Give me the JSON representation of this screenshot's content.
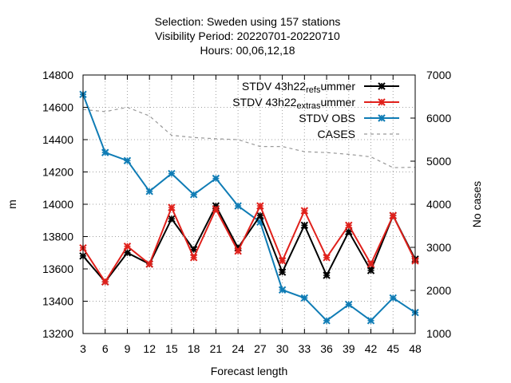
{
  "chart_data": {
    "type": "line",
    "title_lines": [
      "Selection: Sweden using   157 stations",
      "Visibility   Period: 20220701-20220710",
      "Hours: 00,06,12,18"
    ],
    "xlabel": "Forecast length",
    "ylabel": "m",
    "y2label": "No cases",
    "x": [
      3,
      6,
      9,
      12,
      15,
      18,
      21,
      24,
      27,
      30,
      33,
      36,
      39,
      42,
      45,
      48
    ],
    "xlim": [
      3,
      48
    ],
    "ylim": [
      13200,
      14800
    ],
    "yticks": [
      13200,
      13400,
      13600,
      13800,
      14000,
      14200,
      14400,
      14600,
      14800
    ],
    "y2lim": [
      1000,
      7000
    ],
    "y2ticks": [
      1000,
      2000,
      3000,
      4000,
      5000,
      6000,
      7000
    ],
    "grid": true,
    "legend_position": "top-right",
    "series": [
      {
        "name": "STDV 43h22_ref_summer",
        "legend_main": "STDV 43h22",
        "legend_parts": [
          [
            "ref",
            true
          ],
          [
            "s",
            true
          ],
          [
            "ummer",
            false
          ]
        ],
        "color": "#000000",
        "axis": "y",
        "marker": "x",
        "values": [
          13680,
          13520,
          13700,
          13630,
          13910,
          13720,
          13990,
          13730,
          13930,
          13580,
          13870,
          13560,
          13830,
          13590,
          13930,
          13660
        ]
      },
      {
        "name": "STDV 43h22_extra_summer",
        "legend_main": "STDV 43h22",
        "legend_parts": [
          [
            "extra",
            true
          ],
          [
            "s",
            true
          ],
          [
            "ummer",
            false
          ]
        ],
        "color": "#e0201b",
        "axis": "y",
        "marker": "x",
        "values": [
          13730,
          13520,
          13740,
          13630,
          13980,
          13670,
          13970,
          13710,
          13990,
          13650,
          13960,
          13670,
          13870,
          13630,
          13930,
          13650
        ]
      },
      {
        "name": "STDV OBS",
        "legend_main": "STDV OBS",
        "legend_parts": [],
        "color": "#0f7cb5",
        "axis": "y",
        "marker": "x",
        "values": [
          14680,
          14320,
          14270,
          14080,
          14190,
          14060,
          14160,
          13990,
          13890,
          13470,
          13420,
          13280,
          13380,
          13280,
          13420,
          13330
        ]
      },
      {
        "name": "CASES",
        "legend_main": "CASES",
        "legend_parts": [],
        "color": "#999999",
        "axis": "y2",
        "dashed": true,
        "values": [
          6200,
          6150,
          6250,
          6050,
          5600,
          5550,
          5520,
          5500,
          5340,
          5340,
          5220,
          5200,
          5160,
          5100,
          4850,
          4860
        ]
      }
    ]
  }
}
